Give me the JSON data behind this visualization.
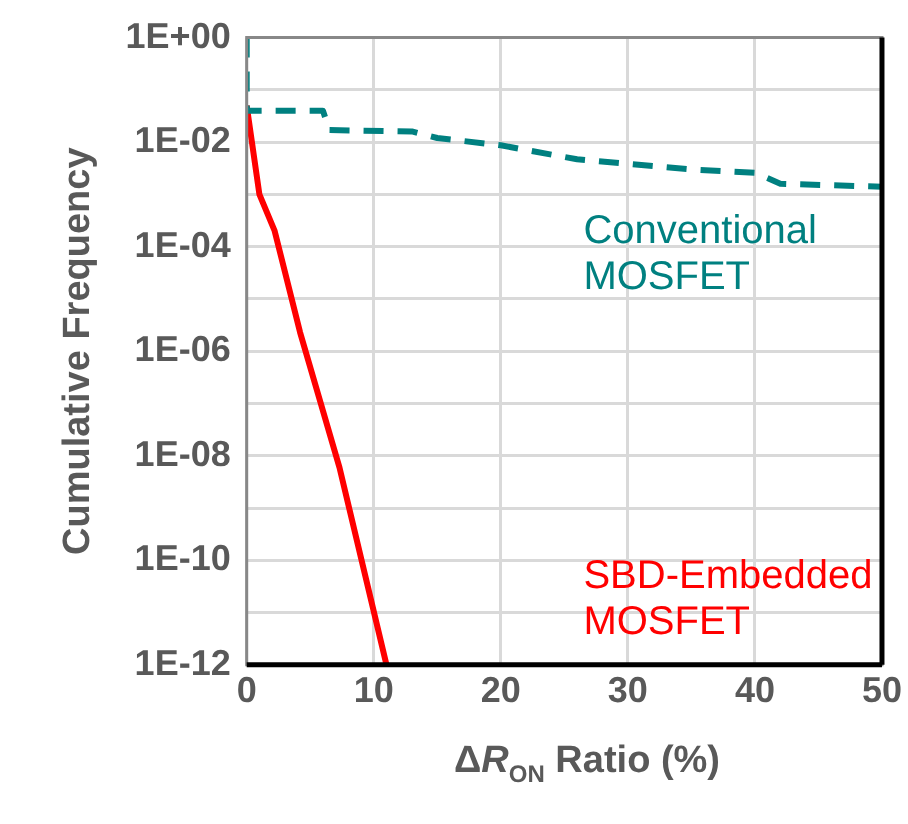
{
  "chart_data": {
    "type": "line",
    "xlabel": "ΔR$_{ON}$ Ratio (%)",
    "ylabel": "Cumulative Frequency",
    "log": "y",
    "grid": true,
    "legend": false,
    "marker": "none",
    "xlim": [
      0,
      50
    ],
    "xticks": [
      0,
      10,
      20,
      30,
      40,
      50
    ],
    "ylim": [
      1e-12,
      1
    ],
    "yticks": [
      {
        "value": 1e-12,
        "label": "1E-12"
      },
      {
        "value": 1e-11,
        "label": null
      },
      {
        "value": 1e-10,
        "label": "1E-10"
      },
      {
        "value": 1e-09,
        "label": null
      },
      {
        "value": 1e-08,
        "label": "1E-08"
      },
      {
        "value": 1e-07,
        "label": null
      },
      {
        "value": 1e-06,
        "label": "1E-06"
      },
      {
        "value": 1e-05,
        "label": null
      },
      {
        "value": 0.0001,
        "label": "1E-04"
      },
      {
        "value": 0.001,
        "label": null
      },
      {
        "value": 0.01,
        "label": "1E-02"
      },
      {
        "value": 0.1,
        "label": null
      },
      {
        "value": 1,
        "label": "1E+00"
      }
    ],
    "series": [
      {
        "name": "Conventional MOSFET",
        "color": "#008080",
        "line_style": "dashed",
        "x": [
          0,
          0,
          6,
          6.5,
          13,
          15,
          20,
          26,
          35,
          40,
          42,
          50
        ],
        "values": [
          1,
          0.04,
          0.04,
          0.017,
          0.016,
          0.012,
          0.0087,
          0.0047,
          0.003,
          0.0026,
          0.0016,
          0.0014
        ]
      },
      {
        "name": "SBD-Embedded MOSFET",
        "color": "#ff0000",
        "line_style": "solid",
        "x": [
          0,
          1,
          2.2,
          4.2,
          7.3,
          11
        ],
        "values": [
          0.05,
          0.001,
          0.0002,
          2.3e-06,
          6e-09,
          1e-12
        ]
      }
    ]
  }
}
